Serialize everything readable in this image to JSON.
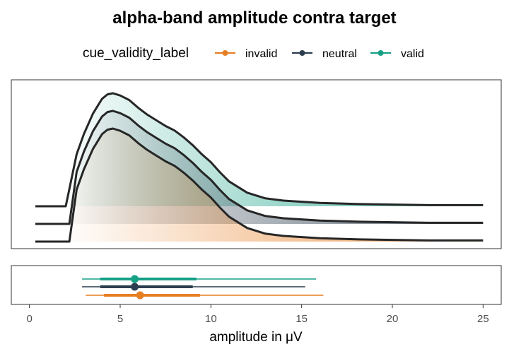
{
  "chart_data": {
    "type": "area",
    "title": "alpha-band amplitude contra target",
    "xlabel": "amplitude in μV",
    "ylabel": "",
    "xlim": [
      -1.0,
      26.0
    ],
    "x_ticks": [
      0,
      5,
      10,
      15,
      20,
      25
    ],
    "x_tick_labels": [
      "0",
      "5",
      "10",
      "15",
      "20",
      "25"
    ],
    "legend": {
      "title": "cue_validity_label",
      "placement": "top"
    },
    "series": [
      {
        "name": "invalid",
        "color": "#E67E22",
        "density": {
          "x": [
            2.2,
            2.6,
            3.0,
            3.5,
            4.0,
            4.3,
            4.6,
            5.0,
            5.5,
            6.0,
            6.5,
            7.0,
            7.5,
            8.0,
            8.5,
            9.0,
            9.5,
            10.0,
            10.5,
            11.0,
            12.0,
            13.0,
            14.0,
            15.0,
            16.0,
            18.0,
            20.0,
            22.0,
            25.0
          ],
          "y": [
            0.0,
            0.46,
            0.64,
            0.82,
            0.95,
            0.99,
            1.0,
            0.98,
            0.94,
            0.87,
            0.81,
            0.76,
            0.71,
            0.67,
            0.61,
            0.54,
            0.46,
            0.39,
            0.3,
            0.22,
            0.12,
            0.07,
            0.05,
            0.04,
            0.03,
            0.02,
            0.015,
            0.01,
            0.01
          ]
        },
        "summary": {
          "point": 6.1,
          "inner": [
            4.1,
            9.4
          ],
          "outer": [
            3.1,
            16.2
          ]
        }
      },
      {
        "name": "neutral",
        "color": "#2C3E50",
        "density": {
          "x": [
            2.2,
            2.6,
            3.0,
            3.5,
            4.0,
            4.3,
            4.6,
            5.0,
            5.5,
            6.0,
            6.5,
            7.0,
            7.5,
            8.0,
            8.5,
            9.0,
            9.5,
            10.0,
            10.5,
            11.0,
            12.0,
            13.0,
            14.0,
            15.0,
            16.0,
            18.0,
            20.0,
            22.0,
            25.0
          ],
          "y": [
            0.0,
            0.46,
            0.64,
            0.82,
            0.95,
            0.99,
            1.0,
            0.98,
            0.94,
            0.87,
            0.81,
            0.76,
            0.71,
            0.67,
            0.61,
            0.54,
            0.46,
            0.39,
            0.3,
            0.22,
            0.12,
            0.07,
            0.05,
            0.04,
            0.03,
            0.02,
            0.015,
            0.01,
            0.01
          ]
        },
        "summary": {
          "point": 5.8,
          "inner": [
            3.9,
            9.0
          ],
          "outer": [
            2.9,
            15.2
          ]
        }
      },
      {
        "name": "valid",
        "color": "#16A085",
        "density": {
          "x": [
            2.0,
            2.6,
            3.0,
            3.5,
            4.0,
            4.3,
            4.6,
            5.0,
            5.5,
            6.0,
            6.5,
            7.0,
            7.5,
            8.0,
            8.5,
            9.0,
            9.5,
            10.0,
            10.5,
            11.0,
            12.0,
            13.0,
            14.0,
            15.0,
            16.0,
            18.0,
            20.0,
            22.0,
            25.0
          ],
          "y": [
            0.0,
            0.46,
            0.64,
            0.82,
            0.95,
            0.99,
            1.0,
            0.98,
            0.94,
            0.87,
            0.81,
            0.76,
            0.71,
            0.67,
            0.61,
            0.54,
            0.46,
            0.39,
            0.3,
            0.22,
            0.12,
            0.07,
            0.05,
            0.04,
            0.03,
            0.02,
            0.015,
            0.01,
            0.01
          ]
        },
        "summary": {
          "point": 5.8,
          "inner": [
            3.9,
            9.2
          ],
          "outer": [
            2.9,
            15.8
          ]
        }
      }
    ]
  }
}
